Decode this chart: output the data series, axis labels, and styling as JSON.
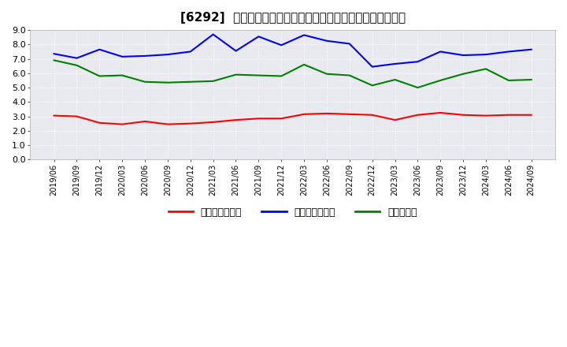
{
  "title": "[6292]  売上債権回転率、買入債務回転率、在庫回転率の推移",
  "x_labels": [
    "2019/06",
    "2019/09",
    "2019/12",
    "2020/03",
    "2020/06",
    "2020/09",
    "2020/12",
    "2021/03",
    "2021/06",
    "2021/09",
    "2021/12",
    "2022/03",
    "2022/06",
    "2022/09",
    "2022/12",
    "2023/03",
    "2023/06",
    "2023/09",
    "2023/12",
    "2024/03",
    "2024/06",
    "2024/09"
  ],
  "売上債権回転率": [
    3.05,
    3.0,
    2.55,
    2.45,
    2.65,
    2.45,
    2.5,
    2.6,
    2.75,
    2.85,
    2.85,
    3.15,
    3.2,
    3.15,
    3.1,
    2.75,
    3.1,
    3.25,
    3.1,
    3.05,
    3.1,
    3.1
  ],
  "買入債務回転率": [
    7.35,
    7.05,
    7.65,
    7.15,
    7.2,
    7.3,
    7.5,
    8.7,
    7.55,
    8.55,
    7.95,
    8.65,
    8.25,
    8.05,
    6.45,
    6.65,
    6.8,
    7.5,
    7.25,
    7.3,
    7.5,
    7.65
  ],
  "在庫回転率": [
    6.9,
    6.55,
    5.8,
    5.85,
    5.4,
    5.35,
    5.4,
    5.45,
    5.9,
    5.85,
    5.8,
    6.6,
    5.95,
    5.85,
    5.15,
    5.55,
    5.0,
    5.5,
    5.95,
    6.3,
    5.5,
    5.55
  ],
  "line_colors": {
    "売上債権回転率": "#ff0000",
    "買入債務回転率": "#0000ff",
    "在庫回転率": "#008000"
  },
  "ylim": [
    0.0,
    9.0
  ],
  "yticks": [
    0.0,
    1.0,
    2.0,
    3.0,
    4.0,
    5.0,
    6.0,
    7.0,
    8.0,
    9.0
  ],
  "background_color": "#ffffff",
  "plot_bg_color": "#e8e8f0",
  "grid_color": "#ffffff",
  "title_fontsize": 11,
  "legend_labels": [
    "売上債権回転率",
    "買入債務回転率",
    "在庫回転率"
  ]
}
